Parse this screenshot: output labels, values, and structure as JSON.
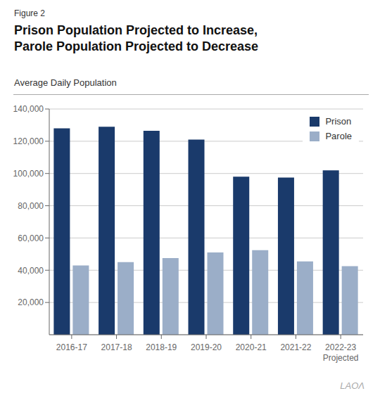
{
  "chart_data": {
    "type": "bar",
    "title": "Prison Population Projected to Increase,\nParole Population Projected to Decrease",
    "subtitle": "Average Daily Population",
    "annotations": [
      "Figure 2",
      "LAOΛ"
    ],
    "categories": [
      "2016-17",
      "2017-18",
      "2018-19",
      "2019-20",
      "2020-21",
      "2021-22",
      "2022-23\nProjected"
    ],
    "series": [
      {
        "name": "Prison",
        "color": "#1a3a6b",
        "values": [
          128000,
          129000,
          126500,
          121000,
          98000,
          97500,
          102000
        ]
      },
      {
        "name": "Parole",
        "color": "#9baec8",
        "values": [
          43000,
          45000,
          47500,
          51000,
          52500,
          45500,
          42500
        ]
      }
    ],
    "ylim": [
      0,
      140000
    ],
    "yticks": [
      {
        "value": 20000,
        "label": "20,000"
      },
      {
        "value": 40000,
        "label": "40,000"
      },
      {
        "value": 60000,
        "label": "60,000"
      },
      {
        "value": 80000,
        "label": "80,000"
      },
      {
        "value": 100000,
        "label": "100,000"
      },
      {
        "value": 120000,
        "label": "120,000"
      },
      {
        "value": 140000,
        "label": "140,000"
      }
    ],
    "grid": true,
    "legend": "upper right"
  }
}
